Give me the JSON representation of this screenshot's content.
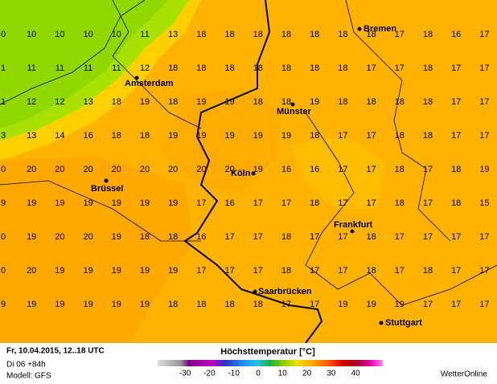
{
  "map": {
    "grid": [
      [
        0,
        10,
        10,
        10,
        10,
        11,
        13,
        18,
        18,
        18,
        18,
        18,
        18,
        18,
        17,
        18,
        16,
        17
      ],
      [
        1,
        11,
        11,
        11,
        11,
        12,
        18,
        18,
        18,
        18,
        18,
        18,
        18,
        17,
        17,
        18,
        17,
        17
      ],
      [
        1,
        12,
        12,
        13,
        18,
        19,
        18,
        19,
        19,
        18,
        18,
        19,
        18,
        18,
        18,
        18,
        17,
        17
      ],
      [
        3,
        13,
        14,
        16,
        18,
        18,
        19,
        19,
        19,
        19,
        19,
        18,
        17,
        17,
        18,
        18,
        17,
        17
      ],
      [
        0,
        20,
        20,
        20,
        20,
        20,
        20,
        20,
        20,
        19,
        16,
        16,
        17,
        17,
        18,
        17,
        18,
        19
      ],
      [
        9,
        19,
        19,
        19,
        19,
        19,
        19,
        17,
        16,
        17,
        17,
        18,
        17,
        17,
        18,
        17,
        18,
        15
      ],
      [
        0,
        19,
        20,
        20,
        19,
        18,
        18,
        16,
        17,
        17,
        18,
        17,
        17,
        18,
        17,
        17,
        17,
        17
      ],
      [
        0,
        20,
        19,
        19,
        19,
        19,
        19,
        17,
        17,
        17,
        18,
        17,
        17,
        18,
        17,
        18,
        17,
        17
      ],
      [
        9,
        19,
        19,
        19,
        19,
        19,
        18,
        18,
        18,
        18,
        17,
        17,
        19,
        19,
        19,
        17,
        17,
        17
      ]
    ],
    "cities": [
      "Bremen",
      "Amsterdam",
      "Münster",
      "Brüssel",
      "Köln",
      "Frankfurt",
      "Saarbrücken",
      "Stuttgart"
    ]
  },
  "footer": {
    "date": "Fr, 10.04.2015, 12..18 UTC",
    "run": "Di 06 +84h",
    "model": "Modell: GFS",
    "legend_title": "Höchsttemperatur [°C]",
    "legend_ticks": [
      -30,
      -20,
      -10,
      0,
      10,
      20,
      30,
      40
    ],
    "brand": "WetterOnline"
  }
}
